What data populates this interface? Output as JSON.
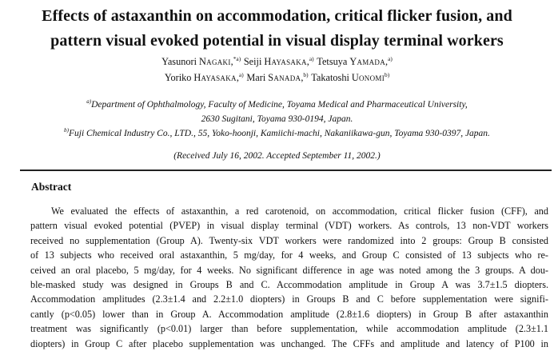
{
  "colors": {
    "paper": "#ffffff",
    "ink": "#111111"
  },
  "title": {
    "lines": [
      "Effects of astaxanthin on accommodation, critical flicker fusion, and",
      "pattern visual evoked potential in visual display terminal workers"
    ]
  },
  "authors": {
    "rows": [
      [
        {
          "given": "Yasunori",
          "family": "Nagaki",
          "comma": ",",
          "sup": "*a)"
        },
        {
          "given": "Seiji",
          "family": "Hayasaka",
          "comma": ",",
          "sup": "a)"
        },
        {
          "given": "Tetsuya",
          "family": "Yamada",
          "comma": ",",
          "sup": "a)"
        }
      ],
      [
        {
          "given": "Yoriko",
          "family": "Hayasaka",
          "comma": ",",
          "sup": "a)"
        },
        {
          "given": "Mari",
          "family": "Sanada",
          "comma": ",",
          "sup": "b)"
        },
        {
          "given": "Takatoshi",
          "family": "Uonomi",
          "comma": "",
          "sup": "b)"
        }
      ]
    ]
  },
  "affiliations": {
    "a_sup": "a)",
    "a_line1": "Department of Ophthalmology, Faculty of Medicine, Toyama Medical and Pharmaceutical University,",
    "a_line2": "2630 Sugitani, Toyama 930-0194, Japan.",
    "b_sup": "b)",
    "b_line": "Fuji Chemical Industry Co., LTD., 55, Yoko-hoonji, Kamiichi-machi, Nakaniikawa-gun, Toyama 930-0397, Japan."
  },
  "received": "(Received July 16, 2002. Accepted September 11, 2002.)",
  "abstract": {
    "heading": "Abstract",
    "lines": [
      "We evaluated the effects of astaxanthin, a red carotenoid, on accommodation, critical flicker fusion (CFF), and",
      "pattern visual evoked potential (PVEP) in visual display terminal (VDT) workers. As controls, 13 non-VDT workers",
      "received no supplementation (Group A). Twenty-six VDT workers were randomized into 2 groups: Group B consisted",
      "of 13 subjects who received oral astaxanthin, 5 mg/day, for 4 weeks, and Group C consisted of 13 subjects who re-",
      "ceived an oral placebo, 5 mg/day, for 4 weeks. No significant difference in age was noted among the 3 groups. A dou-",
      "ble-masked study was designed in Groups B and C. Accommodation amplitude in Group A was 3.7±1.5 diopters.",
      "Accommodation amplitudes (2.3±1.4 and 2.2±1.0 diopters) in Groups B and C before supplementation were signifi-",
      "cantly (p<0.05) lower than in Group A. Accommodation amplitude (2.8±1.6 diopters) in Group B after astaxanthin",
      "treatment was significantly (p<0.01) larger than before supplementation, while accommodation amplitude (2.3±1.1",
      "diopters) in Group C after placebo supplementation was unchanged. The CFFs and amplitude and latency of P100 in"
    ]
  }
}
